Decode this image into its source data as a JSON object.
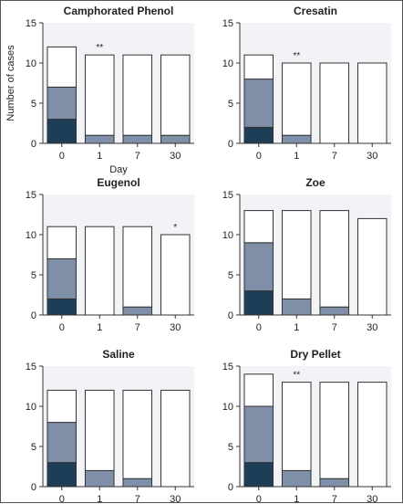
{
  "colors": {
    "background": "#f1f3f6",
    "dark": "#1e3d56",
    "mid": "#7f8fa8",
    "empty": "#ffffff",
    "stroke": "#333333"
  },
  "chart_data": [
    {
      "type": "bar",
      "stacked": true,
      "title": "Camphorated Phenol",
      "categories": [
        "0",
        "1",
        "7",
        "30"
      ],
      "xlabel": "Day",
      "ylabel": "Number of cases",
      "ylim": [
        0,
        15
      ],
      "yticks": [
        0,
        5,
        10,
        15
      ],
      "series": [
        {
          "values": [
            3,
            0,
            0,
            0
          ]
        },
        {
          "values": [
            4,
            1,
            1,
            1
          ]
        },
        {
          "values": [
            5,
            10,
            10,
            10
          ]
        }
      ],
      "annotations": [
        "",
        "**",
        "",
        ""
      ]
    },
    {
      "type": "bar",
      "stacked": true,
      "title": "Cresatin",
      "categories": [
        "0",
        "1",
        "7",
        "30"
      ],
      "xlabel": "",
      "ylabel": "",
      "ylim": [
        0,
        15
      ],
      "yticks": [
        0,
        5,
        10,
        15
      ],
      "series": [
        {
          "values": [
            2,
            0,
            0,
            0
          ]
        },
        {
          "values": [
            6,
            1,
            0,
            0
          ]
        },
        {
          "values": [
            3,
            9,
            10,
            10
          ]
        }
      ],
      "annotations": [
        "",
        "**",
        "",
        ""
      ]
    },
    {
      "type": "bar",
      "stacked": true,
      "title": "Eugenol",
      "categories": [
        "0",
        "1",
        "7",
        "30"
      ],
      "xlabel": "",
      "ylabel": "",
      "ylim": [
        0,
        15
      ],
      "yticks": [
        0,
        5,
        10,
        15
      ],
      "series": [
        {
          "values": [
            2,
            0,
            0,
            0
          ]
        },
        {
          "values": [
            5,
            0,
            1,
            0
          ]
        },
        {
          "values": [
            4,
            11,
            10,
            10
          ]
        }
      ],
      "annotations": [
        "",
        "",
        "",
        "*"
      ]
    },
    {
      "type": "bar",
      "stacked": true,
      "title": "Zoe",
      "categories": [
        "0",
        "1",
        "7",
        "30"
      ],
      "xlabel": "",
      "ylabel": "",
      "ylim": [
        0,
        15
      ],
      "yticks": [
        0,
        5,
        10,
        15
      ],
      "series": [
        {
          "values": [
            3,
            0,
            0,
            0
          ]
        },
        {
          "values": [
            6,
            2,
            1,
            0
          ]
        },
        {
          "values": [
            4,
            11,
            12,
            12
          ]
        }
      ],
      "annotations": [
        "",
        "",
        "",
        ""
      ]
    },
    {
      "type": "bar",
      "stacked": true,
      "title": "Saline",
      "categories": [
        "0",
        "1",
        "7",
        "30"
      ],
      "xlabel": "",
      "ylabel": "",
      "ylim": [
        0,
        15
      ],
      "yticks": [
        0,
        5,
        10,
        15
      ],
      "series": [
        {
          "values": [
            3,
            0,
            0,
            0
          ]
        },
        {
          "values": [
            5,
            2,
            1,
            0
          ]
        },
        {
          "values": [
            4,
            10,
            11,
            12
          ]
        }
      ],
      "annotations": [
        "",
        "",
        "",
        ""
      ]
    },
    {
      "type": "bar",
      "stacked": true,
      "title": "Dry Pellet",
      "categories": [
        "0",
        "1",
        "7",
        "30"
      ],
      "xlabel": "",
      "ylabel": "",
      "ylim": [
        0,
        15
      ],
      "yticks": [
        0,
        5,
        10,
        15
      ],
      "series": [
        {
          "values": [
            3,
            0,
            0,
            0
          ]
        },
        {
          "values": [
            7,
            2,
            1,
            0
          ]
        },
        {
          "values": [
            4,
            11,
            12,
            13
          ]
        }
      ],
      "annotations": [
        "",
        "**",
        "",
        ""
      ]
    }
  ]
}
